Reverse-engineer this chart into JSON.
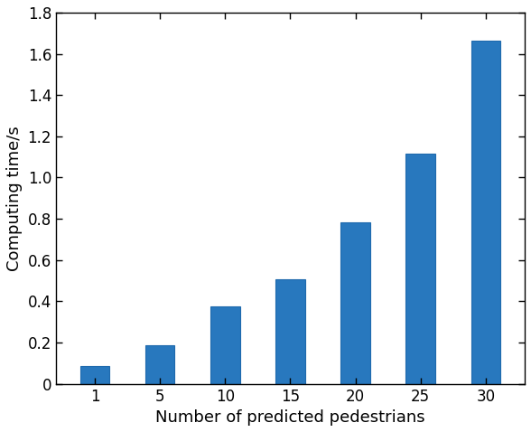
{
  "categories": [
    1,
    5,
    10,
    15,
    20,
    25,
    30
  ],
  "category_labels": [
    "1",
    "5",
    "10",
    "15",
    "20",
    "25",
    "30"
  ],
  "values": [
    0.085,
    0.185,
    0.375,
    0.505,
    0.785,
    1.115,
    1.665
  ],
  "bar_color": "#2878BE",
  "bar_edge_color": "#1f6aad",
  "xlabel": "Number of predicted pedestrians",
  "ylabel": "Computing time/s",
  "ylim": [
    0,
    1.8
  ],
  "yticks": [
    0,
    0.2,
    0.4,
    0.6,
    0.8,
    1.0,
    1.2,
    1.4,
    1.6,
    1.8
  ],
  "bar_width": 0.45,
  "xlabel_fontsize": 13,
  "ylabel_fontsize": 13,
  "tick_fontsize": 12,
  "background_color": "#ffffff",
  "figsize": [
    5.88,
    4.78
  ],
  "dpi": 100
}
